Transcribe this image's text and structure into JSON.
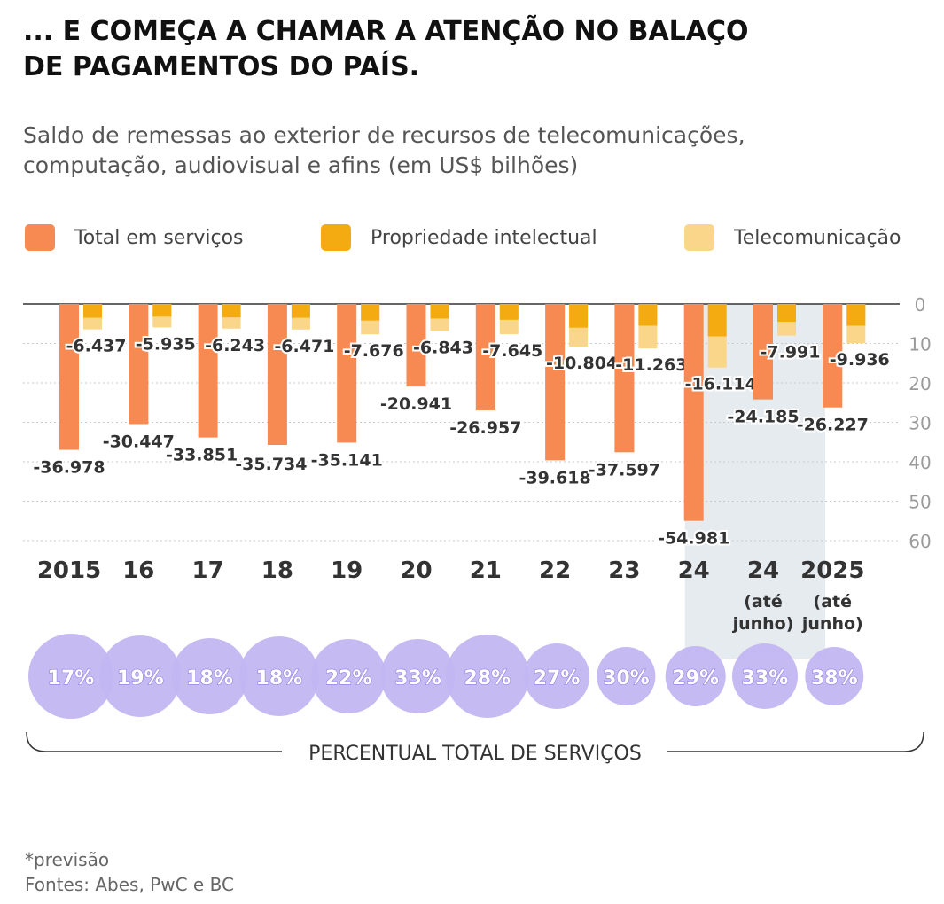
{
  "title_lines": [
    "... E COMEÇA A CHAMAR A ATENÇÃO NO BALAÇO",
    "DE PAGAMENTOS DO PAÍS."
  ],
  "subtitle_lines": [
    "Saldo de remessas ao exterior de recursos de telecomunicações,",
    "computação, audiovisual e afins (em US$ bilhões)"
  ],
  "colors": {
    "total": "#F68A52",
    "propriedade": "#F4AB11",
    "telecom": "#FAD68A",
    "bubble": "#C3B6F2",
    "bubble_overlap": "#8E7DE3",
    "highlight": "#E6EBF0"
  },
  "footer": {
    "note": "*previsão",
    "sources": "Fontes: Abes, PwC e BC"
  },
  "chart_data": {
    "type": "bar",
    "categories": [
      [
        "2015"
      ],
      [
        "16"
      ],
      [
        "17"
      ],
      [
        "18"
      ],
      [
        "19"
      ],
      [
        "20"
      ],
      [
        "21"
      ],
      [
        "22"
      ],
      [
        "23"
      ],
      [
        "24"
      ],
      [
        "24",
        "(até",
        "junho)"
      ],
      [
        "2025",
        "(até",
        "junho)"
      ]
    ],
    "series": [
      {
        "name": "Total em serviços",
        "values": [
          -36.978,
          -30.447,
          -33.851,
          -35.734,
          -35.141,
          -20.941,
          -26.957,
          -39.618,
          -37.597,
          -54.981,
          -24.185,
          -26.227
        ],
        "labels": [
          "-36.978",
          "-30.447",
          "-33.851",
          "-35.734",
          "-35.141",
          "-20.941",
          "-26.957",
          "-39.618",
          "-37.597",
          "-54.981",
          "-24.185",
          "-26.227"
        ]
      },
      {
        "name": "Propriedade intelectual",
        "values": [
          -3.5,
          -3.2,
          -3.4,
          -3.5,
          -4.2,
          -3.7,
          -4.0,
          -6.0,
          -5.5,
          -8.2,
          -4.5,
          -5.5
        ]
      },
      {
        "name": "Telecomunicação",
        "values": [
          -6.437,
          -5.935,
          -6.243,
          -6.471,
          -7.676,
          -6.843,
          -7.645,
          -10.804,
          -11.263,
          -16.114,
          -7.991,
          -9.936
        ],
        "labels": [
          "-6.437",
          "-5.935",
          "-6.243",
          "-6.471",
          "-7.676",
          "-6.843",
          "-7.645",
          "-10.804",
          "-11.263",
          "-16.114",
          "-7.991",
          "-9.936"
        ]
      }
    ],
    "y_ticks": [
      0,
      10,
      20,
      30,
      40,
      50,
      60
    ],
    "ylim": [
      -60,
      0
    ],
    "grid": true,
    "legend": "top",
    "highlight_categories": [
      9,
      10
    ],
    "percent_label": "PERCENTUAL TOTAL DE SERVIÇOS",
    "percentages": [
      17,
      19,
      18,
      18,
      22,
      33,
      28,
      27,
      30,
      29,
      33,
      38
    ],
    "percent_labels": [
      "17%",
      "19%",
      "18%",
      "18%",
      "22%",
      "33%",
      "28%",
      "27%",
      "30%",
      "29%",
      "33%",
      "38%"
    ]
  }
}
